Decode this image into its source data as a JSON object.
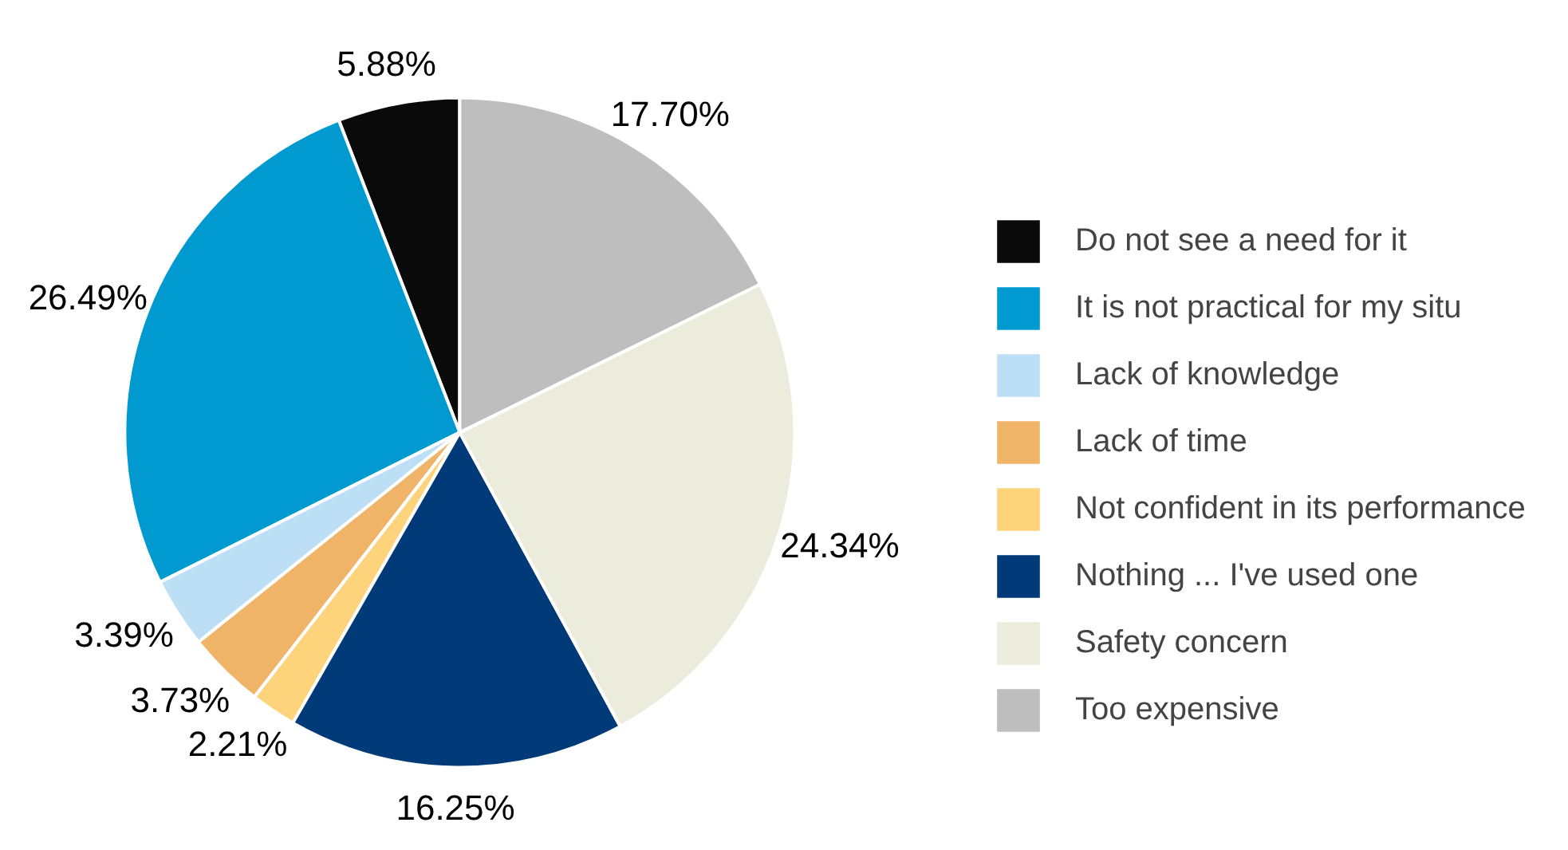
{
  "chart_data": {
    "type": "pie",
    "categories": [
      "Do not see a need for it",
      "It is not practical for my situ",
      "Lack of knowledge",
      "Lack of time",
      "Not confident in its performance",
      "Nothing ... I've used one",
      "Safety concern",
      "Too expensive"
    ],
    "values": [
      5.88,
      26.49,
      3.39,
      3.73,
      2.21,
      16.25,
      24.34,
      17.7
    ],
    "colors": [
      "#0a0a0a",
      "#009ad0",
      "#bddff5",
      "#efb468",
      "#fdd47c",
      "#003a78",
      "#ebecdc",
      "#bebebe"
    ],
    "value_labels": [
      "5.88%",
      "26.49%",
      "3.39%",
      "3.73%",
      "2.21%",
      "16.25%",
      "24.34%",
      "17.70%"
    ],
    "legend": "right"
  }
}
